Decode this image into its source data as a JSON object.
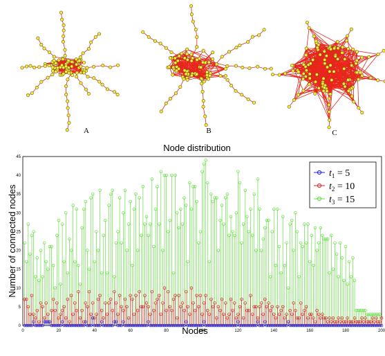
{
  "panels": [
    {
      "label": "A"
    },
    {
      "label": "B"
    },
    {
      "label": "C"
    }
  ],
  "colors": {
    "edge": "#e8261c",
    "node_fill": "#f2ea3c",
    "node_stroke": "#6b5a10",
    "t1": "#2222dd",
    "t2": "#dd2222",
    "t3": "#66dd44"
  },
  "chart_data": {
    "type": "stem",
    "title": "Node distribution",
    "xlabel": "Nodes",
    "ylabel": "Number of connected nodes",
    "xlim": [
      0,
      200
    ],
    "ylim": [
      0,
      45
    ],
    "xticks": [
      0,
      20,
      40,
      60,
      80,
      100,
      120,
      140,
      160,
      180,
      200
    ],
    "yticks": [
      0,
      5,
      10,
      15,
      20,
      25,
      30,
      35,
      40,
      45
    ],
    "legend_position": "top-right",
    "series": [
      {
        "name": "t1",
        "sub": "1",
        "label_value": "5",
        "values": [
          0,
          0,
          0,
          0,
          0,
          1,
          0,
          0,
          0,
          0,
          0,
          1,
          1,
          1,
          1,
          0,
          0,
          0,
          0,
          0,
          0,
          1,
          0,
          0,
          0,
          0,
          0,
          0,
          0,
          0,
          0,
          0,
          0,
          0,
          1,
          0,
          0,
          0,
          2,
          0,
          0,
          0,
          0,
          1,
          0,
          0,
          0,
          0,
          0,
          0,
          1,
          1,
          0,
          0,
          0,
          1,
          0,
          0,
          0,
          0,
          0,
          0,
          0,
          0,
          0,
          0,
          0,
          0,
          0,
          1,
          0,
          0,
          0,
          0,
          0,
          0,
          0,
          0,
          0,
          0,
          0,
          0,
          0,
          0,
          0,
          0,
          0,
          0,
          0,
          0,
          1,
          0,
          0,
          0,
          0,
          0,
          0,
          0,
          0,
          0,
          1,
          0,
          0,
          0,
          0,
          0,
          0,
          0,
          0,
          0,
          0,
          0,
          0,
          0,
          0,
          0,
          0,
          0,
          0,
          1,
          0,
          0,
          0,
          0,
          0,
          0,
          0,
          0,
          0,
          0,
          1,
          0,
          0,
          0,
          1,
          0,
          0,
          0,
          0,
          0,
          0,
          0,
          0,
          0,
          0,
          0,
          0,
          1,
          0,
          0,
          0,
          0,
          0,
          0,
          0,
          0,
          0,
          0,
          0,
          0,
          0,
          0,
          0,
          0,
          0,
          0,
          0,
          0,
          0,
          0,
          0,
          0,
          0,
          0,
          0,
          0,
          0,
          0,
          0,
          0,
          0,
          0,
          0,
          0,
          0,
          0,
          0,
          0,
          0,
          0,
          0,
          0,
          0,
          0,
          0,
          0,
          0,
          0,
          0,
          0
        ]
      },
      {
        "name": "t2",
        "sub": "2",
        "label_value": "10",
        "values": [
          7,
          7,
          5,
          3,
          8,
          3,
          2,
          4,
          1,
          6,
          5,
          2,
          6,
          3,
          1,
          4,
          7,
          4,
          6,
          2,
          3,
          4,
          5,
          2,
          7,
          1,
          8,
          3,
          6,
          4,
          9,
          2,
          4,
          1,
          6,
          5,
          9,
          3,
          6,
          2,
          3,
          7,
          8,
          4,
          2,
          6,
          3,
          6,
          7,
          4,
          9,
          6,
          3,
          8,
          5,
          4,
          7,
          5,
          2,
          8,
          7,
          3,
          8,
          4,
          9,
          5,
          5,
          8,
          6,
          5,
          3,
          9,
          4,
          6,
          7,
          8,
          3,
          6,
          10,
          4,
          9,
          5,
          4,
          7,
          8,
          2,
          8,
          5,
          6,
          4,
          9,
          5,
          3,
          10,
          6,
          4,
          8,
          5,
          8,
          3,
          6,
          8,
          4,
          3,
          7,
          5,
          6,
          2,
          5,
          4,
          7,
          3,
          6,
          2,
          3,
          7,
          4,
          6,
          2,
          3,
          5,
          7,
          2,
          6,
          4,
          4,
          8,
          3,
          5,
          5,
          2,
          5,
          6,
          3,
          7,
          5,
          6,
          4,
          5,
          3,
          2,
          5,
          3,
          4,
          5,
          2,
          3,
          1,
          4,
          3,
          6,
          4,
          2,
          2,
          6,
          3,
          4,
          5,
          2,
          3,
          3,
          2,
          1,
          4,
          3,
          2,
          3,
          2,
          2,
          1,
          2,
          1,
          2,
          1,
          1,
          2,
          1,
          2,
          1,
          1,
          2,
          1,
          1,
          1,
          2,
          1,
          1,
          1,
          2,
          1,
          2,
          1,
          1,
          1,
          2,
          1,
          2,
          1,
          1,
          2
        ]
      },
      {
        "name": "t3",
        "sub": "3",
        "label_value": "15",
        "values": [
          22,
          17,
          27,
          19,
          24,
          25,
          13,
          18,
          12,
          20,
          13,
          22,
          17,
          15,
          21,
          21,
          16,
          10,
          24,
          28,
          11,
          27,
          17,
          30,
          14,
          23,
          20,
          32,
          17,
          31,
          16,
          11,
          26,
          31,
          33,
          20,
          15,
          34,
          35,
          17,
          25,
          20,
          36,
          14,
          24,
          28,
          14,
          32,
          35,
          36,
          13,
          22,
          25,
          34,
          22,
          30,
          36,
          20,
          27,
          33,
          16,
          31,
          35,
          20,
          34,
          24,
          37,
          27,
          29,
          24,
          27,
          39,
          21,
          31,
          37,
          27,
          41,
          20,
          40,
          40,
          25,
          28,
          40,
          14,
          40,
          30,
          26,
          31,
          27,
          34,
          32,
          17,
          38,
          31,
          37,
          37,
          33,
          22,
          25,
          41,
          43,
          44,
          38,
          17,
          35,
          33,
          34,
          34,
          20,
          28,
          32,
          27,
          34,
          35,
          24,
          29,
          25,
          24,
          30,
          41,
          38,
          22,
          27,
          36,
          29,
          25,
          31,
          24,
          35,
          20,
          39,
          31,
          20,
          23,
          26,
          28,
          28,
          13,
          25,
          31,
          16,
          31,
          21,
          14,
          29,
          16,
          22,
          10,
          27,
          28,
          20,
          30,
          25,
          13,
          22,
          21,
          27,
          22,
          27,
          17,
          24,
          16,
          26,
          20,
          22,
          26,
          24,
          23,
          23,
          23,
          14,
          24,
          15,
          22,
          19,
          13,
          22,
          18,
          12,
          21,
          11,
          17,
          13,
          18,
          12,
          4,
          4,
          4,
          4,
          4,
          4,
          3,
          3,
          3,
          3,
          3,
          3,
          3,
          3,
          2
        ]
      }
    ]
  }
}
